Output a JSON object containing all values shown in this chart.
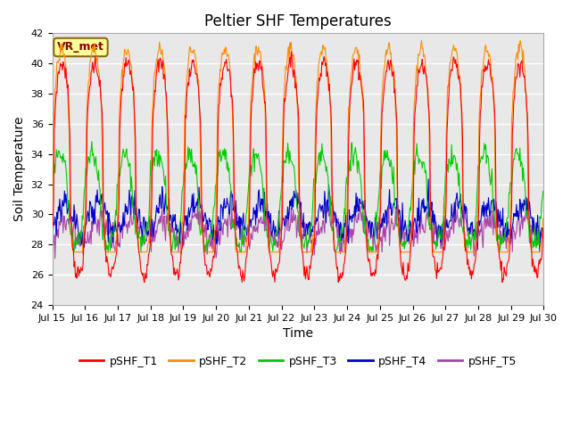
{
  "title": "Peltier SHF Temperatures",
  "xlabel": "Time",
  "ylabel": "Soil Temperature",
  "ylim": [
    24,
    42
  ],
  "x_tick_labels": [
    "Jul 15",
    "Jul 16",
    "Jul 17",
    "Jul 18",
    "Jul 19",
    "Jul 20",
    "Jul 21",
    "Jul 22",
    "Jul 23",
    "Jul 24",
    "Jul 25",
    "Jul 26",
    "Jul 27",
    "Jul 28",
    "Jul 29",
    "Jul 30"
  ],
  "annotation_text": "VR_met",
  "annotation_color": "#8B0000",
  "annotation_bg": "#FFFF99",
  "annotation_edge": "#8B6914",
  "line_colors": {
    "pSHF_T1": "#FF0000",
    "pSHF_T2": "#FF8C00",
    "pSHF_T3": "#00CC00",
    "pSHF_T4": "#0000CC",
    "pSHF_T5": "#AA44AA"
  },
  "background_color": "#E8E8E8",
  "grid_color": "#FFFFFF",
  "fig_color": "#FFFFFF",
  "title_fontsize": 12,
  "axis_fontsize": 10,
  "tick_fontsize": 8
}
